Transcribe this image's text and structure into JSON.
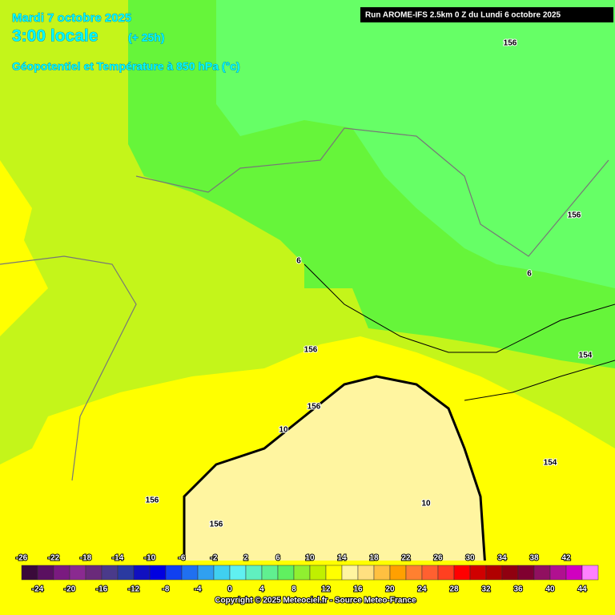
{
  "header": {
    "date": "Mardi 7 octobre 2025",
    "time": "3:00 locale",
    "lead": "(+ 25h)",
    "field": "Géopotentiel et Température à 850 hPa (°c)",
    "run": "Run AROME-IFS 2.5km 0 Z du Lundi 6 octobre 2025"
  },
  "contour_labels": [
    "156",
    "156",
    "6",
    "6",
    "156",
    "156",
    "154",
    "10",
    "154",
    "10",
    "156",
    "156"
  ],
  "colorbar": {
    "ticks": [
      -26,
      -24,
      -22,
      -20,
      -18,
      -16,
      -14,
      -12,
      -10,
      -8,
      -6,
      -4,
      -2,
      0,
      2,
      4,
      6,
      8,
      10,
      12,
      14,
      16,
      18,
      20,
      22,
      24,
      26,
      28,
      30,
      32,
      34,
      36,
      38,
      40,
      42,
      44
    ],
    "colors": [
      "#3a0a3a",
      "#5a1060",
      "#7a1a80",
      "#8a2a90",
      "#6a2a7a",
      "#4a3a8a",
      "#2a3aa0",
      "#1010c0",
      "#0000e0",
      "#1040f0",
      "#2070f0",
      "#30a0f0",
      "#40d0f0",
      "#60f0f0",
      "#60f0c0",
      "#60f090",
      "#60f060",
      "#90f030",
      "#c0f000",
      "#ffff00",
      "#fff5a0",
      "#ffe080",
      "#ffc040",
      "#ffa000",
      "#ff8030",
      "#ff6030",
      "#ff4020",
      "#ff0000",
      "#d00000",
      "#b00000",
      "#900010",
      "#800030",
      "#901060",
      "#b01090",
      "#d000c0",
      "#ff80ff"
    ]
  },
  "copyright": "Copyright © 2025 Meteociel.fr - Source Meteo-France"
}
